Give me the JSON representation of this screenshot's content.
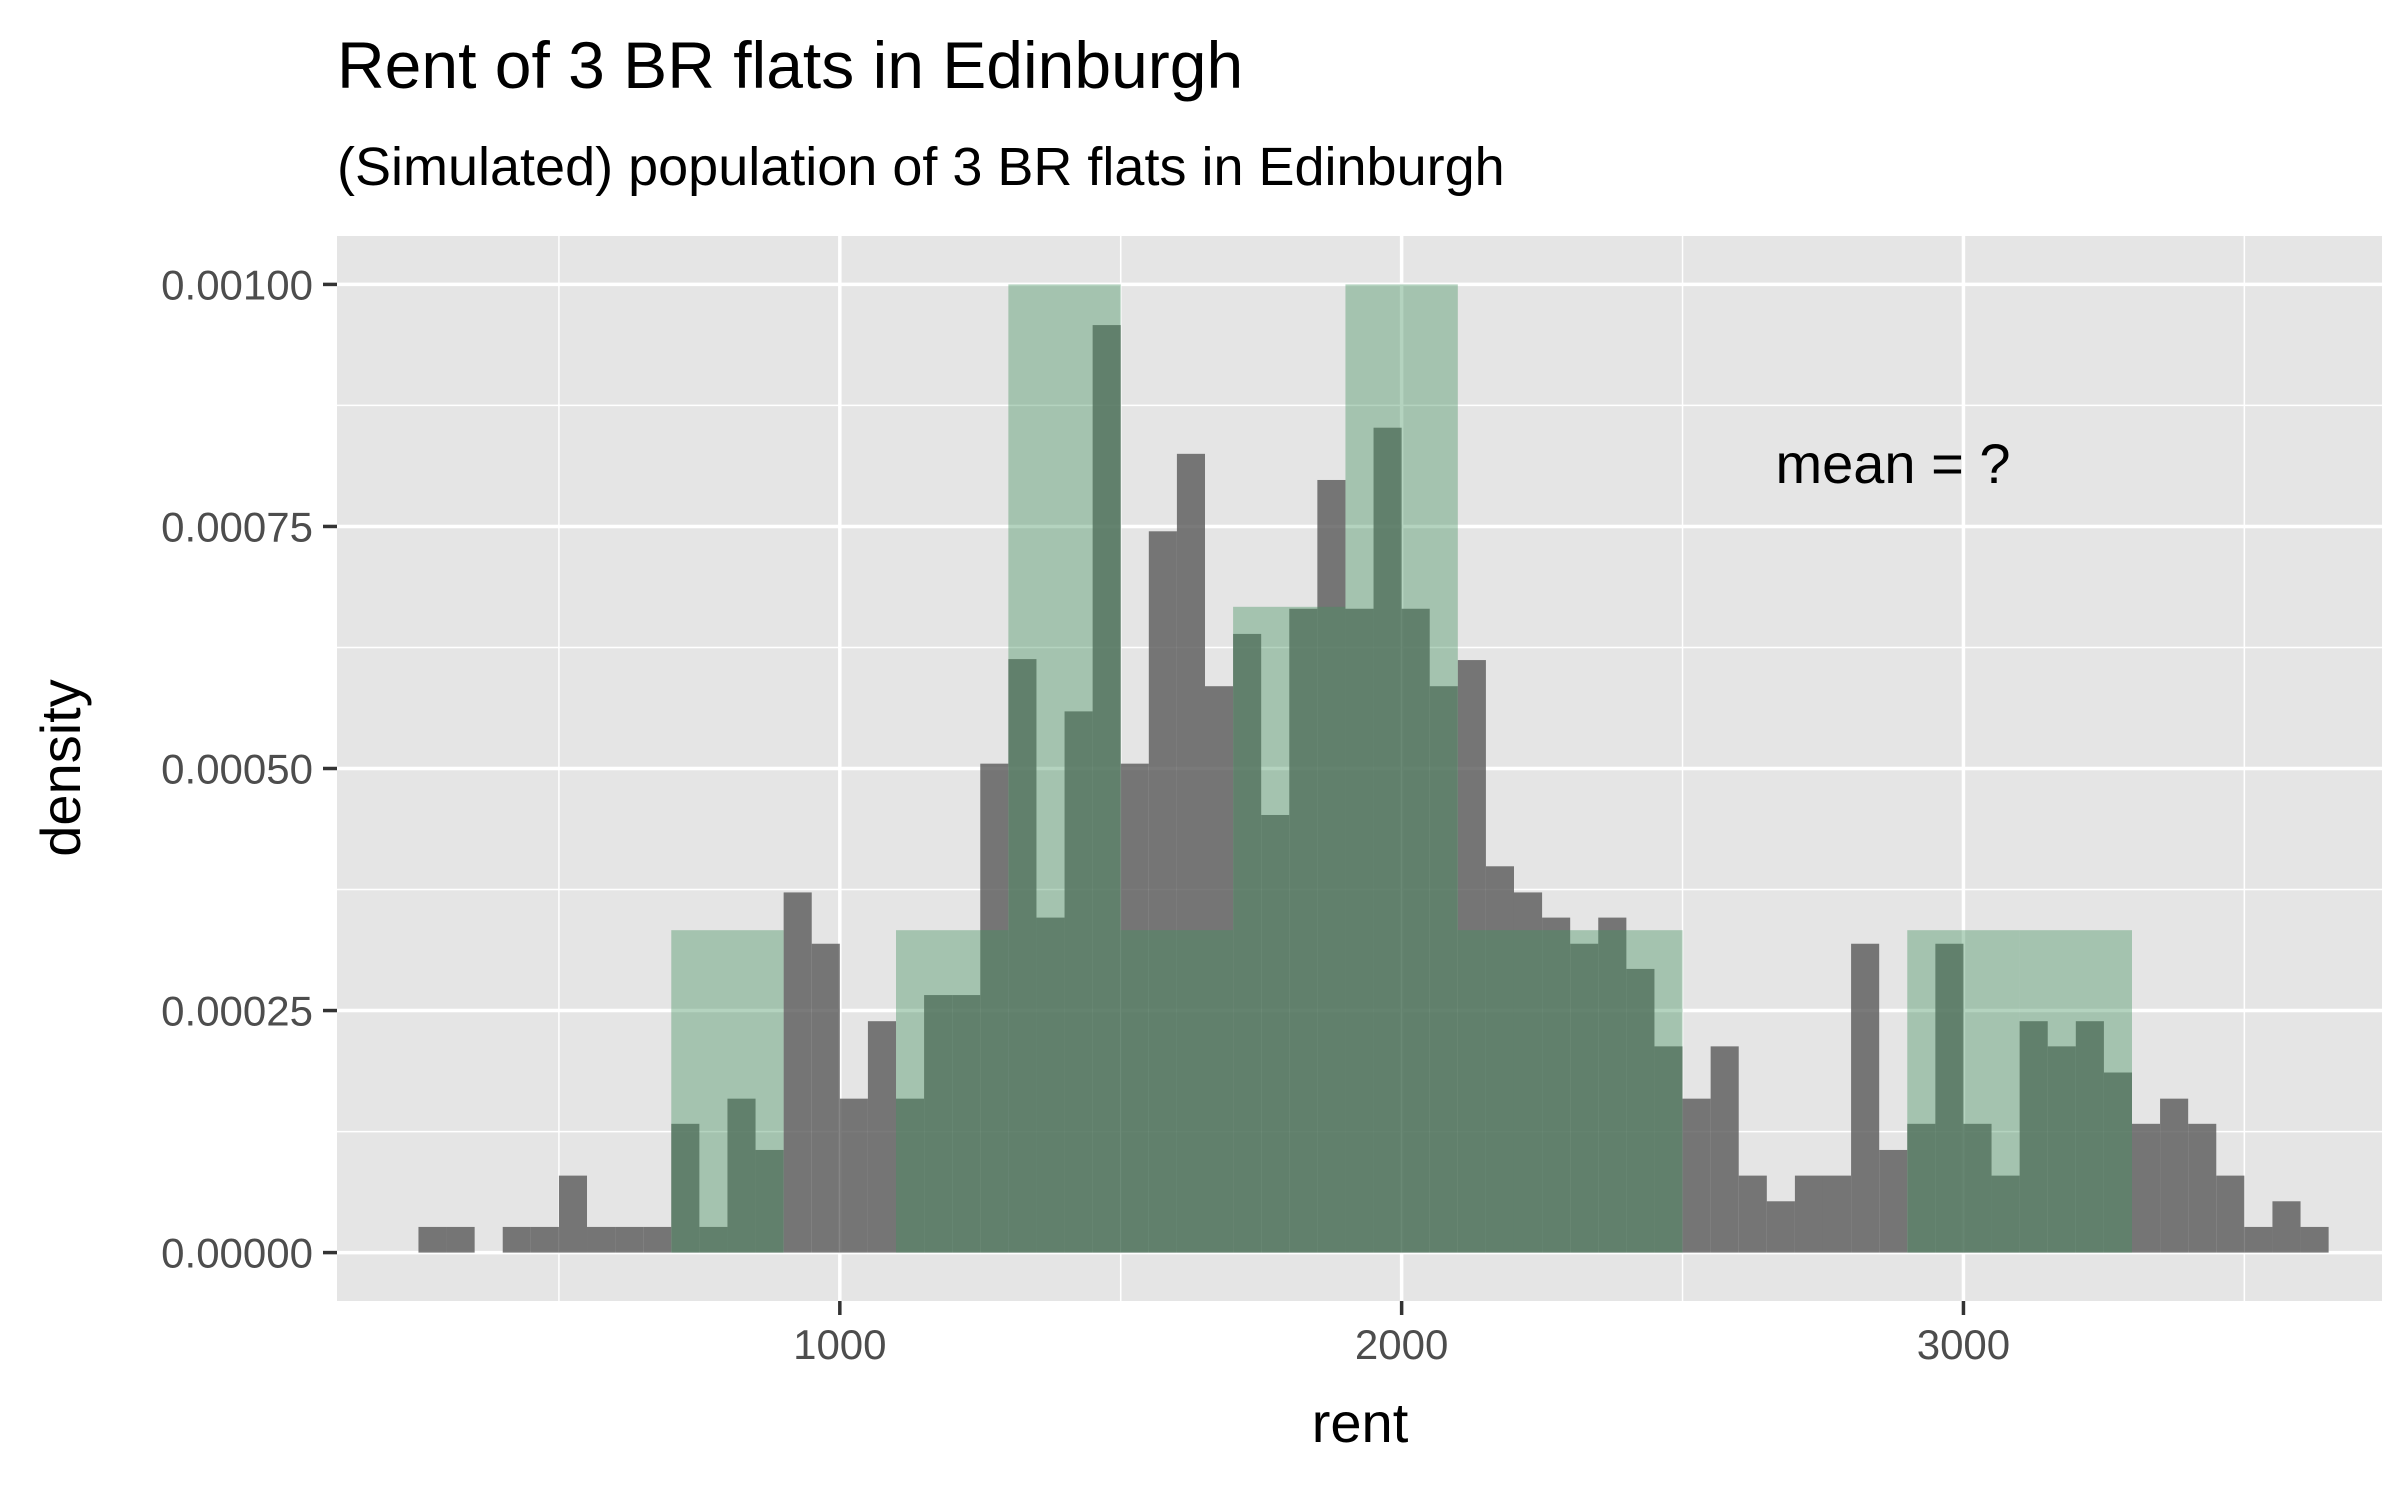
{
  "chart_data": {
    "type": "bar",
    "title": "Rent of 3 BR flats in Edinburgh",
    "subtitle": "(Simulated) population of 3 BR flats in Edinburgh",
    "xlabel": "rent",
    "ylabel": "density",
    "annotation": "mean = ?",
    "xlim": [
      105,
      3745
    ],
    "ylim": [
      -5e-05,
      0.00105
    ],
    "x_ticks": [
      1000,
      2000,
      3000
    ],
    "x_tick_labels": [
      "1000",
      "2000",
      "3000"
    ],
    "x_minor": [
      500,
      1500,
      2500,
      3500
    ],
    "y_ticks": [
      0,
      0.00025,
      0.0005,
      0.00075,
      0.001
    ],
    "y_tick_labels": [
      "0.00000",
      "0.00025",
      "0.00050",
      "0.00075",
      "0.00100"
    ],
    "y_minor": [
      0.000125,
      0.000375,
      0.000625,
      0.000875
    ],
    "grid": true,
    "series": [
      {
        "color": "#595959",
        "opacity": 0.8,
        "binwidth": 50,
        "bins": [
          [
            250,
            2.65e-05
          ],
          [
            300,
            2.65e-05
          ],
          [
            400,
            2.65e-05
          ],
          [
            450,
            2.65e-05
          ],
          [
            500,
            7.95e-05
          ],
          [
            550,
            2.65e-05
          ],
          [
            600,
            2.65e-05
          ],
          [
            650,
            2.65e-05
          ],
          [
            700,
            0.000133
          ],
          [
            750,
            2.65e-05
          ],
          [
            800,
            0.000159
          ],
          [
            850,
            0.000106
          ],
          [
            900,
            0.000372
          ],
          [
            950,
            0.000319
          ],
          [
            1000,
            0.000159
          ],
          [
            1050,
            0.000239
          ],
          [
            1100,
            0.000159
          ],
          [
            1150,
            0.000266
          ],
          [
            1200,
            0.000266
          ],
          [
            1250,
            0.000505
          ],
          [
            1300,
            0.000613
          ],
          [
            1350,
            0.000346
          ],
          [
            1400,
            0.000559
          ],
          [
            1450,
            0.000958
          ],
          [
            1500,
            0.000505
          ],
          [
            1550,
            0.000745
          ],
          [
            1600,
            0.000825
          ],
          [
            1650,
            0.000585
          ],
          [
            1700,
            0.000639
          ],
          [
            1750,
            0.000452
          ],
          [
            1800,
            0.000665
          ],
          [
            1850,
            0.000798
          ],
          [
            1900,
            0.000665
          ],
          [
            1950,
            0.000852
          ],
          [
            2000,
            0.000665
          ],
          [
            2050,
            0.000585
          ],
          [
            2100,
            0.000612
          ],
          [
            2150,
            0.000399
          ],
          [
            2200,
            0.000372
          ],
          [
            2250,
            0.000346
          ],
          [
            2300,
            0.000319
          ],
          [
            2350,
            0.000346
          ],
          [
            2400,
            0.000293
          ],
          [
            2450,
            0.000213
          ],
          [
            2500,
            0.000159
          ],
          [
            2550,
            0.000213
          ],
          [
            2600,
            7.95e-05
          ],
          [
            2650,
            5.3e-05
          ],
          [
            2700,
            7.95e-05
          ],
          [
            2750,
            7.95e-05
          ],
          [
            2800,
            0.000319
          ],
          [
            2850,
            0.000106
          ],
          [
            2900,
            0.000133
          ],
          [
            2950,
            0.000319
          ],
          [
            3000,
            0.000133
          ],
          [
            3050,
            7.95e-05
          ],
          [
            3100,
            0.000239
          ],
          [
            3150,
            0.000213
          ],
          [
            3200,
            0.000239
          ],
          [
            3250,
            0.000186
          ],
          [
            3300,
            0.000133
          ],
          [
            3350,
            0.000159
          ],
          [
            3400,
            0.000133
          ],
          [
            3450,
            7.95e-05
          ],
          [
            3500,
            2.65e-05
          ],
          [
            3550,
            5.3e-05
          ],
          [
            3600,
            2.65e-05
          ]
        ]
      },
      {
        "color": "#44915e",
        "opacity": 0.4,
        "binwidth": 200,
        "bins": [
          [
            700,
            0.000333
          ],
          [
            900,
            0
          ],
          [
            1100,
            0.000333
          ],
          [
            1300,
            0.001
          ],
          [
            1500,
            0.000333
          ],
          [
            1700,
            0.000667
          ],
          [
            1900,
            0.001
          ],
          [
            2100,
            0.000333
          ],
          [
            2300,
            0.000333
          ],
          [
            2500,
            0
          ],
          [
            2700,
            0
          ],
          [
            2900,
            0.000333
          ],
          [
            3100,
            0.000333
          ]
        ]
      }
    ]
  }
}
